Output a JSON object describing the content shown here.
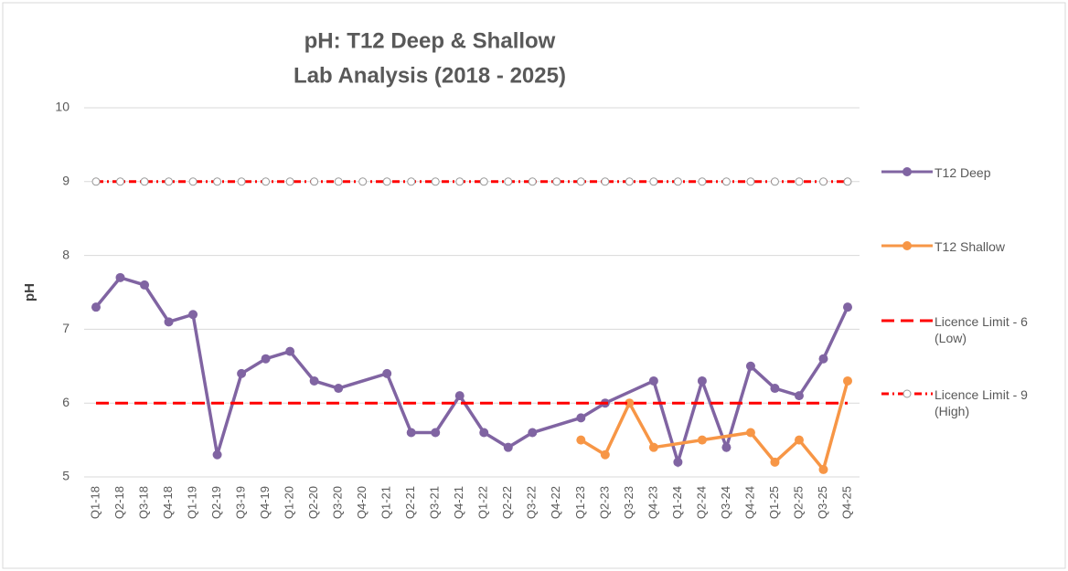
{
  "chart_data": {
    "type": "line",
    "title": "pH: T12 Deep & Shallow",
    "subtitle": "Lab Analysis (2018 - 2025)",
    "y_label": "pH",
    "categories": [
      "Q1-18",
      "Q2-18",
      "Q3-18",
      "Q4-18",
      "Q1-19",
      "Q2-19",
      "Q3-19",
      "Q4-19",
      "Q1-20",
      "Q2-20",
      "Q3-20",
      "Q4-20",
      "Q1-21",
      "Q2-21",
      "Q3-21",
      "Q4-21",
      "Q1-22",
      "Q2-22",
      "Q3-22",
      "Q4-22",
      "Q1-23",
      "Q2-23",
      "Q3-23",
      "Q4-23",
      "Q1-24",
      "Q2-24",
      "Q3-24",
      "Q4-24",
      "Q1-25",
      "Q2-25",
      "Q3-25",
      "Q4-25"
    ],
    "series": [
      {
        "name": "T12 Deep",
        "color": "#8064a2",
        "style": "marker",
        "values": [
          7.3,
          7.7,
          7.6,
          7.1,
          7.2,
          5.3,
          6.4,
          6.6,
          6.7,
          6.3,
          6.2,
          null,
          6.4,
          5.6,
          5.6,
          6.1,
          5.6,
          5.4,
          5.6,
          null,
          5.8,
          6.0,
          null,
          6.3,
          5.2,
          6.3,
          5.4,
          6.5,
          6.2,
          6.1,
          6.6,
          7.3
        ]
      },
      {
        "name": "T12 Shallow",
        "color": "#f79646",
        "style": "marker",
        "values": [
          null,
          null,
          null,
          null,
          null,
          null,
          null,
          null,
          null,
          null,
          null,
          null,
          null,
          null,
          null,
          null,
          null,
          null,
          null,
          null,
          5.5,
          5.3,
          6.0,
          5.4,
          null,
          5.5,
          null,
          5.6,
          5.2,
          5.5,
          5.1,
          6.3
        ]
      },
      {
        "name": "Licence Limit - 6 (Low)",
        "color": "#ff0000",
        "style": "dash",
        "values": [
          6,
          6,
          6,
          6,
          6,
          6,
          6,
          6,
          6,
          6,
          6,
          6,
          6,
          6,
          6,
          6,
          6,
          6,
          6,
          6,
          6,
          6,
          6,
          6,
          6,
          6,
          6,
          6,
          6,
          6,
          6,
          6
        ]
      },
      {
        "name": "Licence Limit - 9 (High)",
        "color": "#ff0000",
        "style": "dashdot",
        "values": [
          9,
          9,
          9,
          9,
          9,
          9,
          9,
          9,
          9,
          9,
          9,
          9,
          9,
          9,
          9,
          9,
          9,
          9,
          9,
          9,
          9,
          9,
          9,
          9,
          9,
          9,
          9,
          9,
          9,
          9,
          9,
          9
        ]
      }
    ],
    "ylim": [
      5,
      10
    ],
    "yticks": [
      5,
      6,
      7,
      8,
      9,
      10
    ],
    "grid": true,
    "legend": "right"
  }
}
